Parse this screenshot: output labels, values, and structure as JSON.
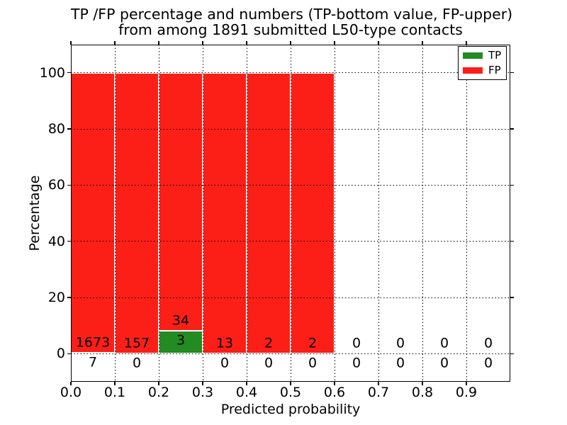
{
  "title": {
    "line1": "TP /FP percentage and numbers (TP-bottom value, FP-upper)",
    "line2": "from among 1891 submitted L50-type contacts"
  },
  "axes": {
    "xlabel": "Predicted probability",
    "ylabel": "Percentage",
    "xlim": [
      0.0,
      1.0
    ],
    "ylim": [
      -10,
      110
    ],
    "x_ticks": [
      {
        "value": 0.0,
        "label": "0.0"
      },
      {
        "value": 0.1,
        "label": "0.1"
      },
      {
        "value": 0.2,
        "label": "0.2"
      },
      {
        "value": 0.3,
        "label": "0.3"
      },
      {
        "value": 0.4,
        "label": "0.4"
      },
      {
        "value": 0.5,
        "label": "0.5"
      },
      {
        "value": 0.6,
        "label": "0.6"
      },
      {
        "value": 0.7,
        "label": "0.7"
      },
      {
        "value": 0.8,
        "label": "0.8"
      },
      {
        "value": 0.9,
        "label": "0.9"
      }
    ],
    "y_ticks": [
      {
        "value": 0,
        "label": "0"
      },
      {
        "value": 20,
        "label": "20"
      },
      {
        "value": 40,
        "label": "40"
      },
      {
        "value": 60,
        "label": "60"
      },
      {
        "value": 80,
        "label": "80"
      },
      {
        "value": 100,
        "label": "100"
      }
    ],
    "grid": "dotted"
  },
  "legend": {
    "position": "upper right",
    "entries": [
      {
        "label": "TP",
        "color": "#228b22"
      },
      {
        "label": "FP",
        "color": "#fb1f17"
      }
    ]
  },
  "colors": {
    "tp": "#228b22",
    "fp": "#fb1f17",
    "bar_edge": "#ffffff",
    "grid": "#000000",
    "text": "#000000",
    "background": "#ffffff"
  },
  "chart_data": {
    "type": "bar",
    "subtype": "stacked-percentage",
    "total_contacts": 1891,
    "note": "Each 0.1-wide bin stacks TP (bottom, green) and FP (top, red) normalized to 100%; labels show raw counts (TP below, FP above)",
    "bins": [
      {
        "range": [
          0.0,
          0.1
        ],
        "tp": 7,
        "fp": 1673
      },
      {
        "range": [
          0.1,
          0.2
        ],
        "tp": 0,
        "fp": 157
      },
      {
        "range": [
          0.2,
          0.3
        ],
        "tp": 3,
        "fp": 34
      },
      {
        "range": [
          0.3,
          0.4
        ],
        "tp": 0,
        "fp": 13
      },
      {
        "range": [
          0.4,
          0.5
        ],
        "tp": 0,
        "fp": 2
      },
      {
        "range": [
          0.5,
          0.6
        ],
        "tp": 0,
        "fp": 2
      },
      {
        "range": [
          0.6,
          0.7
        ],
        "tp": 0,
        "fp": 0
      },
      {
        "range": [
          0.7,
          0.8
        ],
        "tp": 0,
        "fp": 0
      },
      {
        "range": [
          0.8,
          0.9
        ],
        "tp": 0,
        "fp": 0
      },
      {
        "range": [
          0.9,
          1.0
        ],
        "tp": 0,
        "fp": 0
      }
    ]
  }
}
